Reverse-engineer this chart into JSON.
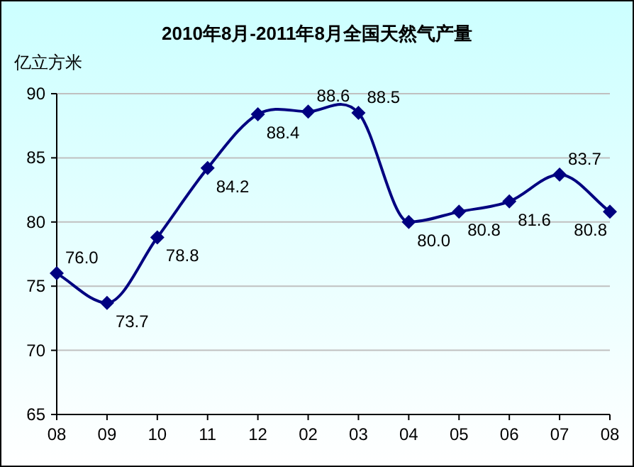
{
  "chart_data": {
    "type": "line",
    "title": "2010年8月-2011年8月全国天然气产量",
    "ylabel": "亿立方米",
    "categories": [
      "08",
      "09",
      "10",
      "11",
      "12",
      "02",
      "03",
      "04",
      "05",
      "06",
      "07",
      "08"
    ],
    "series": [
      {
        "color": "#000080",
        "values": [
          76.0,
          73.7,
          78.8,
          84.2,
          88.4,
          88.6,
          88.5,
          80.0,
          80.8,
          81.6,
          83.7,
          80.8
        ],
        "value_labels": [
          "76.0",
          "73.7",
          "78.8",
          "84.2",
          "88.4",
          "88.6",
          "88.5",
          "80.0",
          "80.8",
          "81.6",
          "83.7",
          "80.8"
        ]
      }
    ],
    "ylim": [
      65,
      90
    ],
    "yticks": [
      65,
      70,
      75,
      80,
      85,
      90
    ],
    "grid": "y",
    "marker": "diamond",
    "line_style": "solid"
  }
}
